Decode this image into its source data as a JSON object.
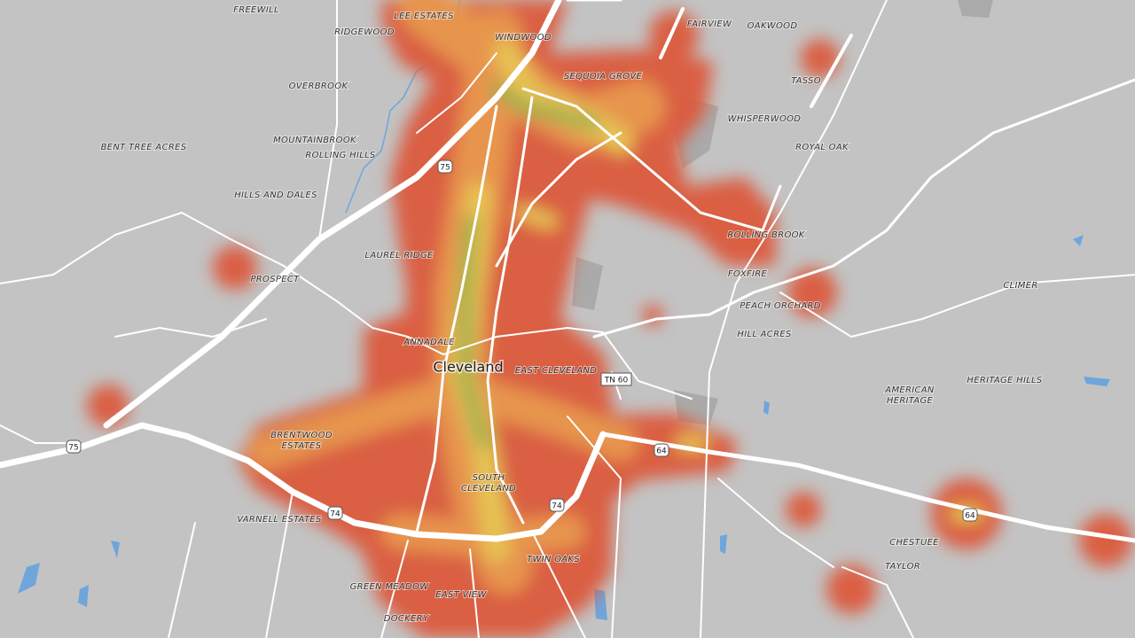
{
  "map": {
    "place_labels": [
      [
        "FREEWILL"
      ],
      [
        "LEE ESTATES"
      ],
      [
        "RIDGEWOOD"
      ],
      [
        "WINDWOOD"
      ],
      [
        "FAIRVIEW"
      ],
      [
        "OAKWOOD"
      ],
      [
        "SEQUOIA GROVE"
      ],
      [
        "TASSO"
      ],
      [
        "OVERBROOK"
      ],
      [
        "WHISPERWOOD"
      ],
      [
        "BENT TREE ACRES"
      ],
      [
        "MOUNTAINBROOK"
      ],
      [
        "ROLLING HILLS"
      ],
      [
        "ROYAL OAK"
      ],
      [
        "HILLS AND DALES"
      ],
      [
        "ROLLING BROOK"
      ],
      [
        "LAUREL RIDGE"
      ],
      [
        "FOXFIRE"
      ],
      [
        "PROSPECT"
      ],
      [
        "CLIMER"
      ],
      [
        "PEACH ORCHARD"
      ],
      [
        "HILL ACRES"
      ],
      [
        "ANNADALE"
      ],
      [
        "EAST CLEVELAND"
      ],
      [
        "AMERICAN",
        "HERITAGE"
      ],
      [
        "HERITAGE HILLS"
      ],
      [
        "BRENTWOOD",
        "ESTATES"
      ],
      [
        "SOUTH",
        "CLEVELAND"
      ],
      [
        "VARNELL ESTATES"
      ],
      [
        "CHESTUEE"
      ],
      [
        "TAYLOR"
      ],
      [
        "TWIN OAKS"
      ],
      [
        "GREEN MEADOW"
      ],
      [
        "EAST VIEW"
      ],
      [
        "DOCKERY"
      ]
    ],
    "city_label": "Cleveland",
    "shields": [
      "75",
      "75",
      "74",
      "74",
      "64",
      "64",
      "TN 60"
    ]
  }
}
